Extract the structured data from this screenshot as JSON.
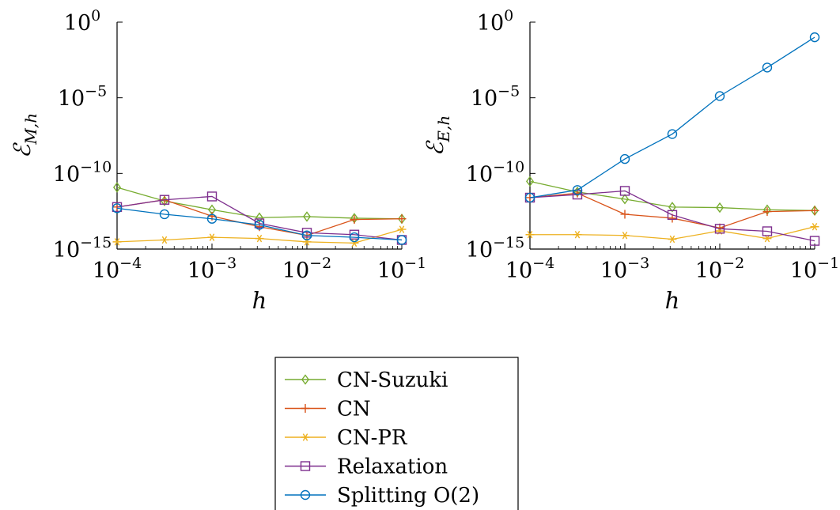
{
  "chart_data": [
    {
      "type": "line",
      "ylabel": "ℰ",
      "ylabel_sub": "M,h",
      "xlabel": "h",
      "xscale": "log",
      "yscale": "log",
      "xlim": [
        0.0001,
        0.1
      ],
      "ylim": [
        1e-15,
        1
      ],
      "xticks": [
        {
          "base": "10",
          "exp": "−4"
        },
        {
          "base": "10",
          "exp": "−3"
        },
        {
          "base": "10",
          "exp": "−2"
        },
        {
          "base": "10",
          "exp": "−1"
        }
      ],
      "yticks": [
        {
          "base": "10",
          "exp": "0"
        },
        {
          "base": "10",
          "exp": "−5"
        },
        {
          "base": "10",
          "exp": "−10"
        },
        {
          "base": "10",
          "exp": "−15"
        }
      ],
      "series": [
        {
          "key": "cn_suzuki",
          "x": [
            0.0001,
            0.000316,
            0.001,
            0.00316,
            0.01,
            0.0316,
            0.1
          ],
          "y": [
            1.2e-11,
            1.5e-12,
            4e-13,
            1.2e-13,
            1.4e-13,
            1.1e-13,
            1e-13
          ]
        },
        {
          "key": "cn",
          "x": [
            0.0001,
            0.000316,
            0.001,
            0.00316,
            0.01,
            0.0316,
            0.1
          ],
          "y": [
            6e-13,
            1.8e-12,
            1.5e-13,
            3e-14,
            8e-15,
            9e-14,
            1e-13
          ]
        },
        {
          "key": "cn_pr",
          "x": [
            0.0001,
            0.000316,
            0.001,
            0.00316,
            0.01,
            0.0316,
            0.1
          ],
          "y": [
            3e-15,
            4e-15,
            6e-15,
            5e-15,
            3e-15,
            2.5e-15,
            2e-14
          ]
        },
        {
          "key": "relaxation",
          "x": [
            0.0001,
            0.000316,
            0.001,
            0.00316,
            0.01,
            0.0316,
            0.1
          ],
          "y": [
            6e-13,
            1.8e-12,
            3e-12,
            5e-14,
            1.2e-14,
            9e-15,
            4e-15
          ]
        },
        {
          "key": "splitting",
          "x": [
            0.0001,
            0.000316,
            0.001,
            0.00316,
            0.01,
            0.0316,
            0.1
          ],
          "y": [
            5e-13,
            2e-13,
            1e-13,
            4e-14,
            8e-15,
            6e-15,
            4e-15
          ]
        }
      ]
    },
    {
      "type": "line",
      "ylabel": "ℰ",
      "ylabel_sub": "E,h",
      "xlabel": "h",
      "xscale": "log",
      "yscale": "log",
      "xlim": [
        0.0001,
        0.1
      ],
      "ylim": [
        1e-15,
        1
      ],
      "xticks": [
        {
          "base": "10",
          "exp": "−4"
        },
        {
          "base": "10",
          "exp": "−3"
        },
        {
          "base": "10",
          "exp": "−2"
        },
        {
          "base": "10",
          "exp": "−1"
        }
      ],
      "yticks": [
        {
          "base": "10",
          "exp": "0"
        },
        {
          "base": "10",
          "exp": "−5"
        },
        {
          "base": "10",
          "exp": "−10"
        },
        {
          "base": "10",
          "exp": "−15"
        }
      ],
      "series": [
        {
          "key": "cn_suzuki",
          "x": [
            0.0001,
            0.000316,
            0.001,
            0.00316,
            0.01,
            0.0316,
            0.1
          ],
          "y": [
            3e-11,
            6e-12,
            2e-12,
            6e-13,
            5.5e-13,
            4e-13,
            3.5e-13
          ]
        },
        {
          "key": "cn",
          "x": [
            0.0001,
            0.000316,
            0.001,
            0.00316,
            0.01,
            0.0316,
            0.1
          ],
          "y": [
            2.5e-12,
            5e-12,
            2e-13,
            1.1e-13,
            2.5e-14,
            3e-13,
            3.5e-13
          ]
        },
        {
          "key": "cn_pr",
          "x": [
            0.0001,
            0.000316,
            0.001,
            0.00316,
            0.01,
            0.0316,
            0.1
          ],
          "y": [
            9e-15,
            9e-15,
            8e-15,
            4.5e-15,
            1.6e-14,
            5e-15,
            3e-14
          ]
        },
        {
          "key": "relaxation",
          "x": [
            0.0001,
            0.000316,
            0.001,
            0.00316,
            0.01,
            0.0316,
            0.1
          ],
          "y": [
            2.5e-12,
            4e-12,
            7e-12,
            1.8e-13,
            2.2e-14,
            1.5e-14,
            3.5e-15
          ]
        },
        {
          "key": "splitting",
          "x": [
            0.0001,
            0.000316,
            0.001,
            0.00316,
            0.01,
            0.0316,
            0.1
          ],
          "y": [
            2.5e-12,
            8e-12,
            9e-10,
            4e-08,
            1.3e-05,
            0.001,
            0.1
          ]
        }
      ]
    }
  ],
  "legend": {
    "placement": "bottom-center",
    "items": [
      {
        "key": "cn_suzuki",
        "label": "CN-Suzuki",
        "color": "#77ac30",
        "marker": "diamond"
      },
      {
        "key": "cn",
        "label": "CN",
        "color": "#d95319",
        "marker": "plus"
      },
      {
        "key": "cn_pr",
        "label": "CN-PR",
        "color": "#edb120",
        "marker": "asterisk"
      },
      {
        "key": "relaxation",
        "label": "Relaxation",
        "color": "#7e2f8e",
        "marker": "square"
      },
      {
        "key": "splitting",
        "label": "Splitting O(2)",
        "color": "#0072bd",
        "marker": "circle"
      }
    ]
  }
}
